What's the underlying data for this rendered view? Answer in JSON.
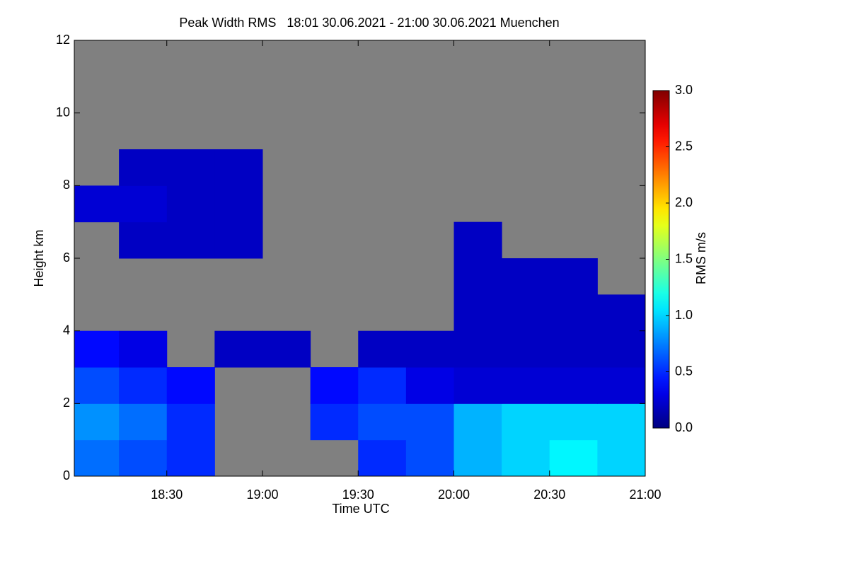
{
  "chart_data": {
    "type": "heatmap",
    "title": "Peak Width RMS   18:01 30.06.2021 - 21:00 30.06.2021 Muenchen",
    "x_label": "Time UTC",
    "y_label": "Height km",
    "colorbar_label": "RMS m/s",
    "xlim": [
      18.0167,
      21
    ],
    "xticks": [
      {
        "value": 18.5,
        "label": "18:30"
      },
      {
        "value": 19,
        "label": "19:00"
      },
      {
        "value": 19.5,
        "label": "19:30"
      },
      {
        "value": 20,
        "label": "20:00"
      },
      {
        "value": 20.5,
        "label": "20:30"
      },
      {
        "value": 21,
        "label": "21:00"
      }
    ],
    "ylim": [
      0,
      12
    ],
    "yticks": [
      0,
      2,
      4,
      6,
      8,
      10,
      12
    ],
    "zlim": [
      0,
      3
    ],
    "zticks": [
      {
        "value": 0,
        "label": "0.0"
      },
      {
        "value": 0.5,
        "label": "0.5"
      },
      {
        "value": 1,
        "label": "1.0"
      },
      {
        "value": 1.5,
        "label": "1.5"
      },
      {
        "value": 2,
        "label": "2.0"
      },
      {
        "value": 2.5,
        "label": "2.5"
      },
      {
        "value": 3,
        "label": "3.0"
      }
    ],
    "colormap": "jet",
    "missing_color": "#808080",
    "x_bins": [
      18,
      18.25,
      18.5,
      18.75,
      19,
      19.25,
      19.5,
      19.75,
      20,
      20.25,
      20.5,
      20.75,
      21
    ],
    "y_bins": [
      0,
      1,
      2,
      3,
      4,
      5,
      6,
      7,
      8,
      9,
      10,
      11,
      12
    ],
    "z": [
      [
        0.7,
        0.6,
        0.5,
        null,
        null,
        null,
        0.5,
        0.6,
        0.9,
        1.0,
        1.1,
        1.0
      ],
      [
        0.8,
        0.7,
        0.5,
        null,
        null,
        0.5,
        0.6,
        0.6,
        0.9,
        1.0,
        1.0,
        1.0
      ],
      [
        0.6,
        0.5,
        0.4,
        null,
        null,
        0.4,
        0.5,
        0.3,
        0.25,
        0.25,
        0.25,
        0.25
      ],
      [
        0.4,
        0.3,
        null,
        0.2,
        0.2,
        null,
        0.2,
        0.2,
        0.2,
        0.2,
        0.2,
        0.2
      ],
      [
        null,
        null,
        null,
        null,
        null,
        null,
        null,
        null,
        0.2,
        0.2,
        0.2,
        0.2
      ],
      [
        null,
        null,
        null,
        null,
        null,
        null,
        null,
        null,
        0.2,
        0.2,
        0.2,
        null
      ],
      [
        null,
        0.2,
        0.2,
        0.2,
        null,
        null,
        null,
        null,
        0.2,
        null,
        null,
        null
      ],
      [
        0.25,
        0.25,
        0.2,
        0.2,
        null,
        null,
        null,
        null,
        null,
        null,
        null,
        null
      ],
      [
        null,
        0.2,
        0.2,
        0.2,
        null,
        null,
        null,
        null,
        null,
        null,
        null,
        null
      ],
      [
        null,
        null,
        null,
        null,
        null,
        null,
        null,
        null,
        null,
        null,
        null,
        null
      ],
      [
        null,
        null,
        null,
        null,
        null,
        null,
        null,
        null,
        null,
        null,
        null,
        null
      ],
      [
        null,
        null,
        null,
        null,
        null,
        null,
        null,
        null,
        null,
        null,
        null,
        null
      ]
    ]
  }
}
